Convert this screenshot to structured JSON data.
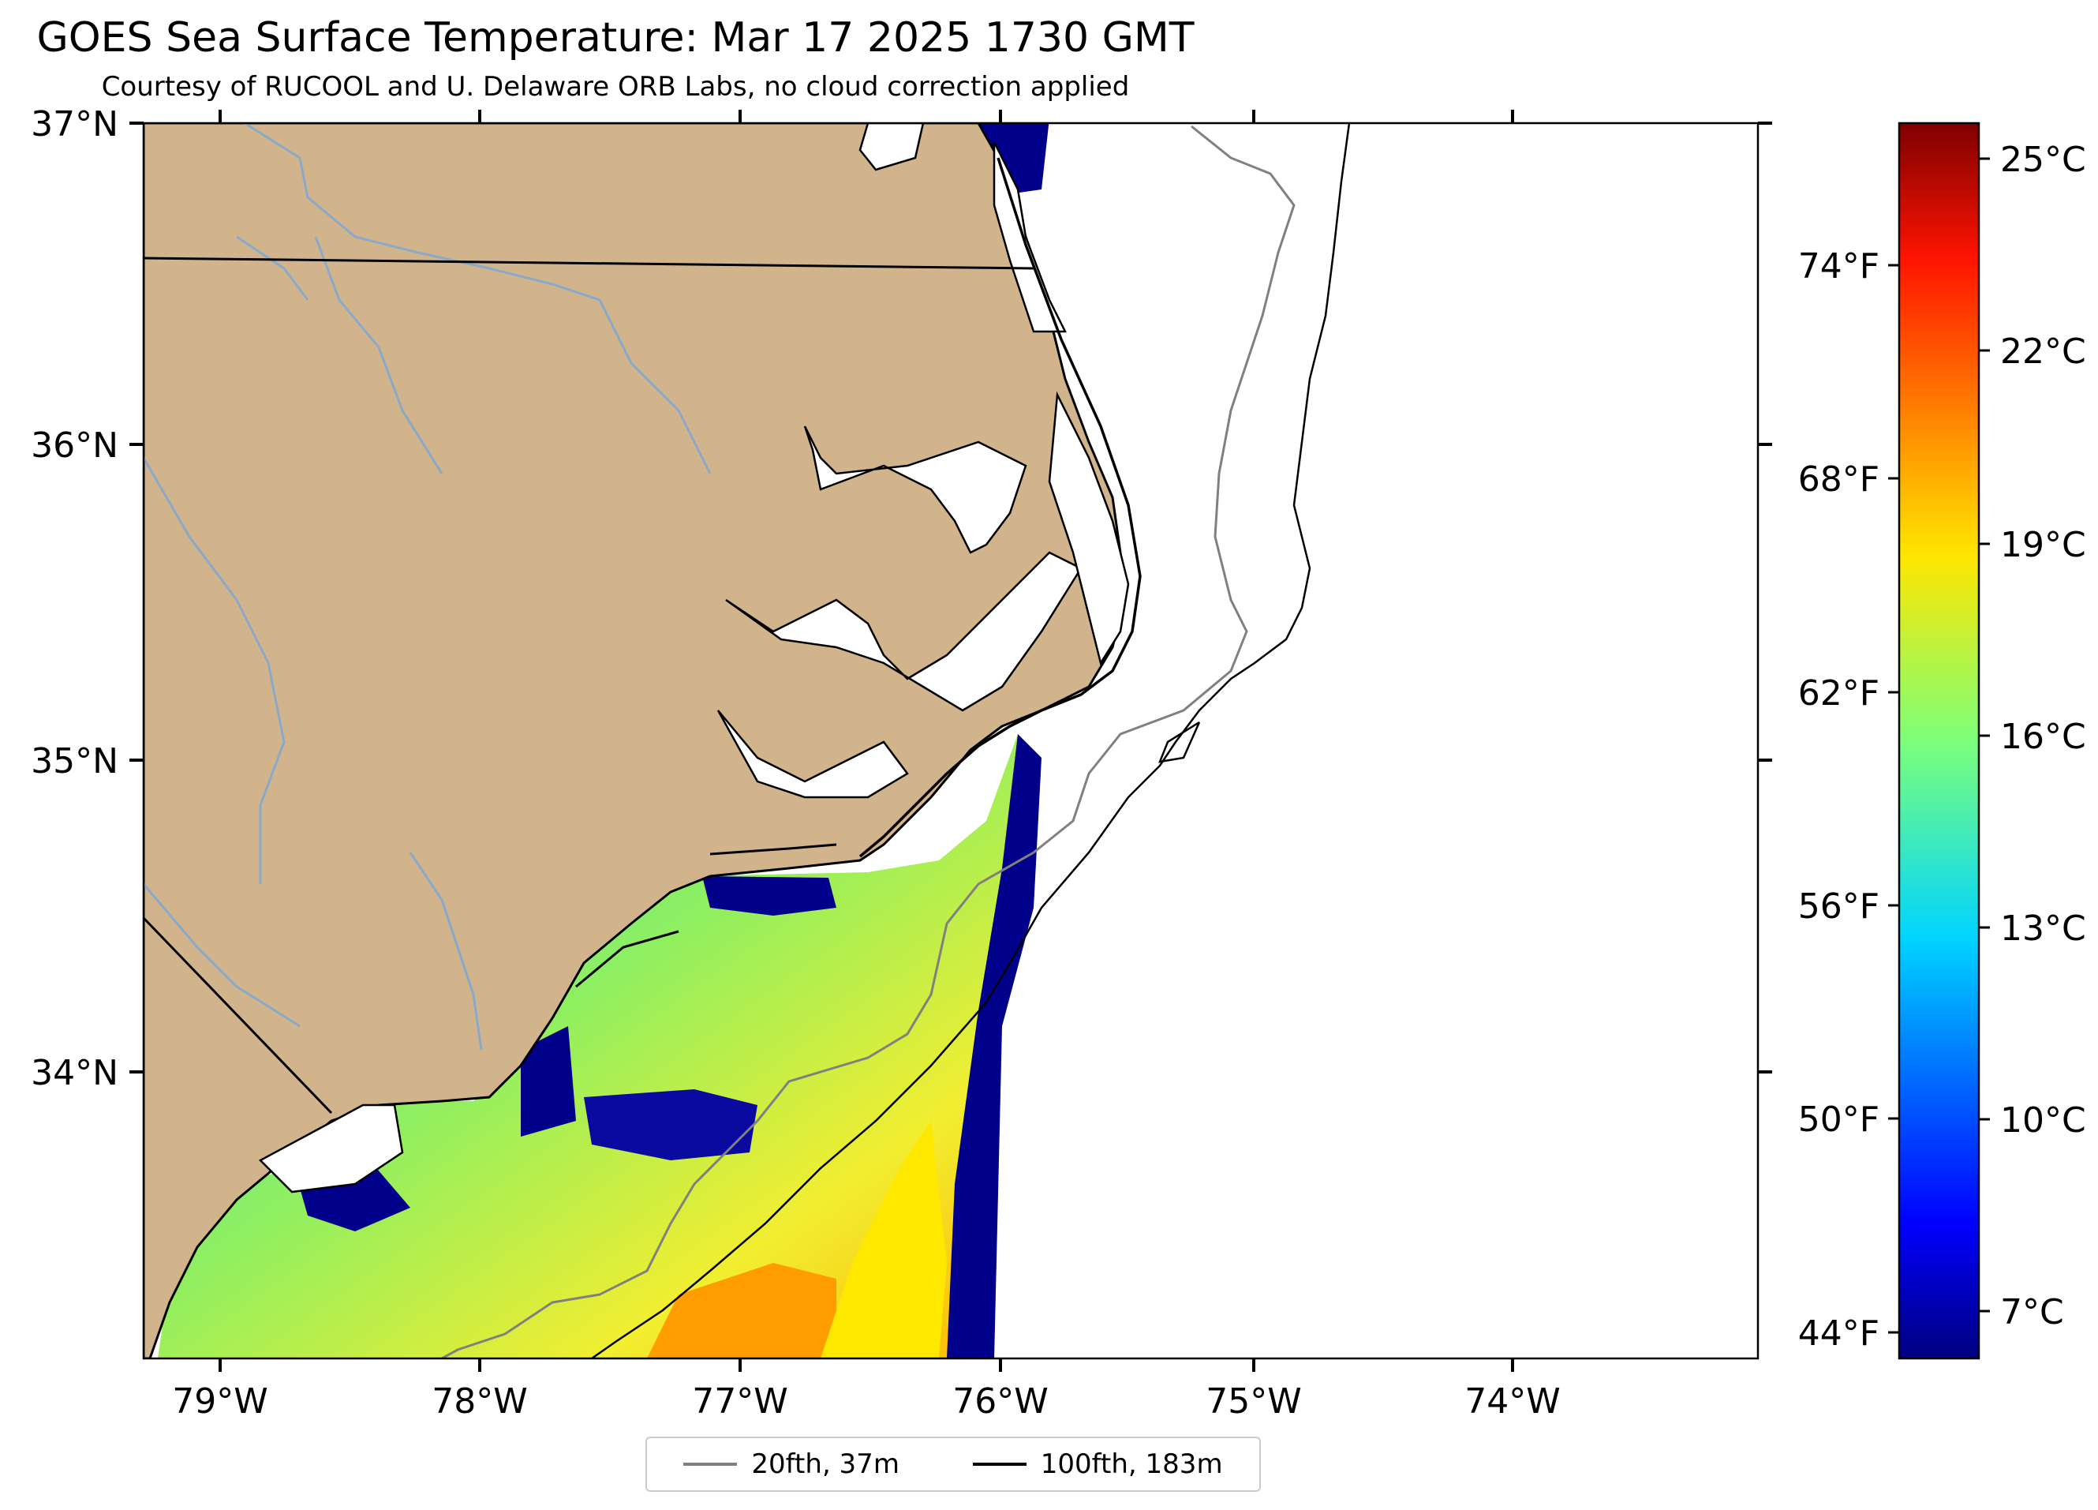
{
  "title": "GOES Sea Surface Temperature: Mar 17 2025 1730 GMT",
  "subtitle": "Courtesy of RUCOOL and U. Delaware ORB Labs, no cloud correction applied",
  "axes": {
    "lon_labels": [
      "79°W",
      "78°W",
      "77°W",
      "76°W",
      "75°W",
      "74°W"
    ],
    "lat_labels": [
      "37°N",
      "36°N",
      "35°N",
      "34°N"
    ],
    "lon_range": [
      -79.3,
      -73.1
    ],
    "lat_range": [
      33.1,
      37.0
    ]
  },
  "colorbar": {
    "celsius_labels": [
      "25°C",
      "22°C",
      "19°C",
      "16°C",
      "13°C",
      "10°C",
      "7°C"
    ],
    "fahrenheit_labels": [
      "74°F",
      "68°F",
      "62°F",
      "56°F",
      "50°F",
      "44°F"
    ],
    "range_c": [
      5.9,
      25.9
    ],
    "colormap": "jet"
  },
  "legend": {
    "items": [
      {
        "label": "20fth, 37m",
        "color": "#808080"
      },
      {
        "label": "100fth, 183m",
        "color": "#000000"
      }
    ]
  },
  "colors": {
    "land": "#d2b48c",
    "water": "#ffffff",
    "rivers": "#8aa9c9",
    "cold": "#00008b",
    "warm": "#ff8c00"
  }
}
